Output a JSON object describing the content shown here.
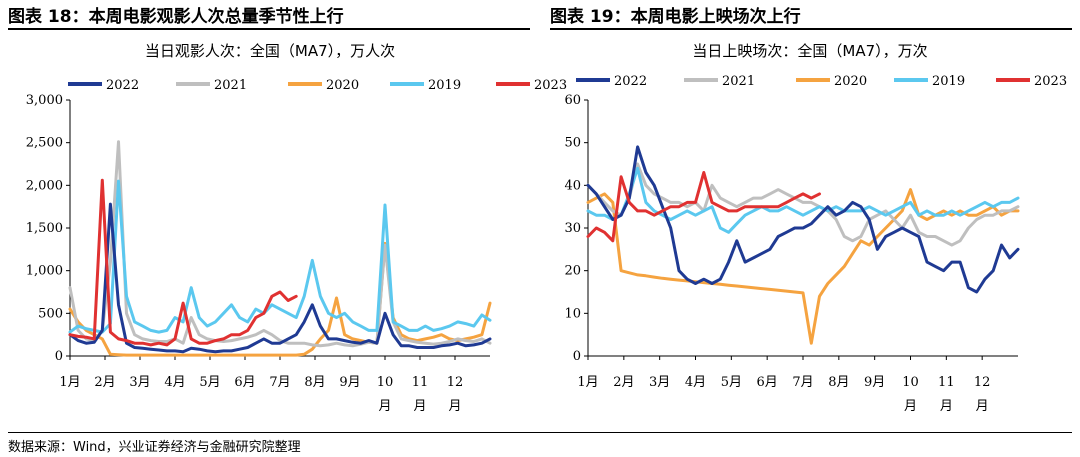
{
  "page": {
    "left_title": "图表 18：本周电影观影人次总量季节性上行",
    "right_title": "图表 19：本周电影上映场次上行",
    "source": "数据来源：Wind，兴业证券经济与金融研究院整理"
  },
  "colors": {
    "2022": "#1f3a93",
    "2021": "#bfbfbf",
    "2020": "#f5a340",
    "2019": "#5bc8ef",
    "2023": "#e03131"
  },
  "chart_data": [
    {
      "type": "line",
      "title": "当日观影人次：全国（MA7），万人次",
      "x_unit": "week",
      "xlim": [
        1,
        53
      ],
      "ylim": [
        0,
        3000
      ],
      "yticks": [
        0,
        500,
        1000,
        1500,
        2000,
        2500,
        3000
      ],
      "ytick_labels": [
        "0",
        "500",
        "1,000",
        "1,500",
        "2,000",
        "2,500",
        "3,000"
      ],
      "xtick_labels": [
        "1月",
        "2月",
        "3月",
        "4月",
        "5月",
        "6月",
        "7月",
        "8月",
        "9月",
        "10月",
        "11月",
        "12月"
      ],
      "legend": [
        "2022",
        "2021",
        "2020",
        "2019",
        "2023"
      ],
      "series": [
        {
          "name": "2022",
          "color": "#1f3a93",
          "x": [
            1,
            2,
            3,
            4,
            5,
            6,
            7,
            8,
            9,
            10,
            11,
            12,
            13,
            14,
            15,
            16,
            17,
            18,
            19,
            20,
            21,
            22,
            23,
            24,
            25,
            26,
            27,
            28,
            29,
            30,
            31,
            32,
            33,
            34,
            35,
            36,
            37,
            38,
            39,
            40,
            41,
            42,
            43,
            44,
            45,
            46,
            47,
            48,
            49,
            50,
            51,
            52,
            53
          ],
          "y": [
            250,
            180,
            150,
            160,
            300,
            1780,
            600,
            150,
            100,
            90,
            80,
            70,
            60,
            60,
            50,
            90,
            80,
            60,
            50,
            60,
            60,
            80,
            100,
            150,
            200,
            150,
            150,
            200,
            250,
            400,
            600,
            350,
            200,
            200,
            180,
            160,
            150,
            180,
            150,
            500,
            250,
            120,
            120,
            100,
            100,
            100,
            120,
            130,
            150,
            120,
            130,
            150,
            200
          ]
        },
        {
          "name": "2021",
          "color": "#bfbfbf",
          "x": [
            1,
            2,
            3,
            4,
            5,
            6,
            7,
            8,
            9,
            10,
            11,
            12,
            13,
            14,
            15,
            16,
            17,
            18,
            19,
            20,
            21,
            22,
            23,
            24,
            25,
            26,
            27,
            28,
            29,
            30,
            31,
            32,
            33,
            34,
            35,
            36,
            37,
            38,
            39,
            40,
            41,
            42,
            43,
            44,
            45,
            46,
            47,
            48,
            49,
            50,
            51,
            52,
            53
          ],
          "y": [
            800,
            300,
            200,
            180,
            300,
            1100,
            2510,
            500,
            250,
            200,
            180,
            170,
            170,
            200,
            150,
            450,
            250,
            200,
            180,
            170,
            180,
            200,
            220,
            250,
            300,
            250,
            180,
            150,
            150,
            150,
            130,
            120,
            130,
            150,
            130,
            120,
            140,
            160,
            150,
            1300,
            400,
            200,
            180,
            160,
            150,
            140,
            150,
            170,
            200,
            180,
            170,
            200,
            150
          ]
        },
        {
          "name": "2020",
          "color": "#f5a340",
          "x": [
            1,
            2,
            3,
            4,
            5,
            6,
            7,
            8,
            9,
            10,
            11,
            12,
            13,
            14,
            15,
            16,
            17,
            18,
            19,
            20,
            21,
            22,
            23,
            24,
            25,
            26,
            27,
            28,
            29,
            30,
            31,
            32,
            33,
            34,
            35,
            36,
            37,
            38,
            39,
            40,
            41,
            42,
            43,
            44,
            45,
            46,
            47,
            48,
            49,
            50,
            51,
            52,
            53
          ],
          "y": [
            550,
            400,
            300,
            250,
            200,
            20,
            15,
            10,
            10,
            10,
            10,
            10,
            10,
            10,
            10,
            10,
            10,
            10,
            10,
            10,
            10,
            10,
            10,
            10,
            10,
            10,
            10,
            10,
            10,
            20,
            80,
            200,
            300,
            680,
            250,
            200,
            180,
            160,
            150,
            1320,
            450,
            250,
            200,
            180,
            200,
            220,
            250,
            200,
            180,
            200,
            220,
            250,
            620
          ]
        },
        {
          "name": "2019",
          "color": "#5bc8ef",
          "x": [
            1,
            2,
            3,
            4,
            5,
            6,
            7,
            8,
            9,
            10,
            11,
            12,
            13,
            14,
            15,
            16,
            17,
            18,
            19,
            20,
            21,
            22,
            23,
            24,
            25,
            26,
            27,
            28,
            29,
            30,
            31,
            32,
            33,
            34,
            35,
            36,
            37,
            38,
            39,
            40,
            41,
            42,
            43,
            44,
            45,
            46,
            47,
            48,
            49,
            50,
            51,
            52,
            53
          ],
          "y": [
            280,
            350,
            320,
            300,
            280,
            380,
            2050,
            700,
            400,
            350,
            300,
            280,
            300,
            450,
            400,
            800,
            450,
            350,
            400,
            500,
            600,
            450,
            400,
            550,
            500,
            600,
            550,
            500,
            450,
            700,
            1120,
            700,
            500,
            450,
            500,
            400,
            350,
            300,
            300,
            1770,
            400,
            350,
            300,
            300,
            350,
            300,
            320,
            350,
            400,
            380,
            350,
            480,
            420
          ]
        },
        {
          "name": "2023",
          "color": "#e03131",
          "x": [
            1,
            2,
            3,
            4,
            5,
            6,
            7,
            8,
            9,
            10,
            11,
            12,
            13,
            14,
            15,
            16,
            17,
            18,
            19,
            20,
            21,
            22,
            23,
            24,
            25,
            26,
            27,
            28,
            29
          ],
          "y": [
            250,
            230,
            220,
            200,
            2060,
            280,
            200,
            180,
            150,
            150,
            130,
            150,
            130,
            200,
            620,
            200,
            150,
            150,
            180,
            200,
            250,
            250,
            300,
            450,
            500,
            700,
            750,
            650,
            700
          ]
        }
      ]
    },
    {
      "type": "line",
      "title": "当日上映场次：全国（MA7），万次",
      "x_unit": "week",
      "xlim": [
        1,
        53
      ],
      "ylim": [
        0,
        60
      ],
      "yticks": [
        0,
        10,
        20,
        30,
        40,
        50,
        60
      ],
      "ytick_labels": [
        "0",
        "10",
        "20",
        "30",
        "40",
        "50",
        "60"
      ],
      "xtick_labels": [
        "1月",
        "2月",
        "3月",
        "4月",
        "5月",
        "6月",
        "7月",
        "8月",
        "9月",
        "10月",
        "11月",
        "12月"
      ],
      "legend": [
        "2022",
        "2021",
        "2020",
        "2019",
        "2023"
      ],
      "series": [
        {
          "name": "2022",
          "color": "#1f3a93",
          "x": [
            1,
            2,
            3,
            4,
            5,
            6,
            7,
            8,
            9,
            10,
            11,
            12,
            13,
            14,
            15,
            16,
            17,
            18,
            19,
            20,
            21,
            22,
            23,
            24,
            25,
            26,
            27,
            28,
            29,
            30,
            31,
            32,
            33,
            34,
            35,
            36,
            37,
            38,
            39,
            40,
            41,
            42,
            43,
            44,
            45,
            46,
            47,
            48,
            49,
            50,
            51,
            52,
            53
          ],
          "y": [
            40,
            38,
            35,
            32,
            33,
            37,
            49,
            43,
            40,
            35,
            30,
            20,
            18,
            17,
            18,
            17,
            18,
            22,
            27,
            22,
            23,
            24,
            25,
            28,
            29,
            30,
            30,
            31,
            33,
            35,
            33,
            34,
            36,
            35,
            32,
            25,
            28,
            29,
            30,
            29,
            28,
            22,
            21,
            20,
            22,
            22,
            16,
            15,
            18,
            20,
            26,
            23,
            25
          ]
        },
        {
          "name": "2021",
          "color": "#bfbfbf",
          "x": [
            1,
            2,
            3,
            4,
            5,
            6,
            7,
            8,
            9,
            10,
            11,
            12,
            13,
            14,
            15,
            16,
            17,
            18,
            19,
            20,
            21,
            22,
            23,
            24,
            25,
            26,
            27,
            28,
            29,
            30,
            31,
            32,
            33,
            34,
            35,
            36,
            37,
            38,
            39,
            40,
            41,
            42,
            43,
            44,
            45,
            46,
            47,
            48,
            49,
            50,
            51,
            52,
            53
          ],
          "y": [
            40,
            38,
            36,
            34,
            33,
            37,
            45,
            40,
            38,
            37,
            36,
            36,
            35,
            36,
            34,
            40,
            37,
            36,
            35,
            36,
            37,
            37,
            38,
            39,
            38,
            37,
            36,
            36,
            35,
            34,
            32,
            28,
            27,
            28,
            32,
            33,
            34,
            32,
            30,
            33,
            29,
            28,
            28,
            27,
            26,
            27,
            30,
            32,
            33,
            33,
            34,
            34,
            35
          ]
        },
        {
          "name": "2020",
          "color": "#f5a340",
          "x": [
            1,
            2,
            3,
            4,
            5,
            6,
            7,
            8,
            9,
            10,
            11,
            12,
            13,
            14,
            15,
            16,
            17,
            18,
            19,
            20,
            21,
            22,
            23,
            24,
            25,
            26,
            27,
            28,
            29,
            30,
            31,
            32,
            33,
            34,
            35,
            36,
            37,
            38,
            39,
            40,
            41,
            42,
            43,
            44,
            45,
            46,
            47,
            48,
            49,
            50,
            51,
            52,
            53
          ],
          "y": [
            36,
            37,
            38,
            36,
            20,
            19.5,
            19,
            18.8,
            18.5,
            18.2,
            18,
            17.8,
            17.6,
            17.4,
            17.2,
            17,
            16.8,
            16.6,
            16.4,
            16.2,
            16,
            15.8,
            15.6,
            15.4,
            15.2,
            15,
            14.8,
            3,
            14,
            17,
            19,
            21,
            24,
            27,
            26,
            28,
            30,
            32,
            34,
            39,
            33,
            32,
            33,
            34,
            33,
            34,
            33,
            33,
            34,
            35,
            33,
            34,
            34
          ]
        },
        {
          "name": "2019",
          "color": "#5bc8ef",
          "x": [
            1,
            2,
            3,
            4,
            5,
            6,
            7,
            8,
            9,
            10,
            11,
            12,
            13,
            14,
            15,
            16,
            17,
            18,
            19,
            20,
            21,
            22,
            23,
            24,
            25,
            26,
            27,
            28,
            29,
            30,
            31,
            32,
            33,
            34,
            35,
            36,
            37,
            38,
            39,
            40,
            41,
            42,
            43,
            44,
            45,
            46,
            47,
            48,
            49,
            50,
            51,
            52,
            53
          ],
          "y": [
            34,
            33,
            33,
            32,
            33,
            38,
            44,
            36,
            34,
            33,
            32,
            33,
            34,
            33,
            34,
            35,
            30,
            29,
            31,
            33,
            34,
            35,
            34,
            34,
            35,
            34,
            33,
            34,
            35,
            34,
            35,
            34,
            34,
            34,
            35,
            34,
            33,
            34,
            35,
            36,
            33,
            34,
            33,
            33,
            34,
            33,
            34,
            35,
            36,
            35,
            36,
            36,
            37
          ]
        },
        {
          "name": "2023",
          "color": "#e03131",
          "x": [
            1,
            2,
            3,
            4,
            5,
            6,
            7,
            8,
            9,
            10,
            11,
            12,
            13,
            14,
            15,
            16,
            17,
            18,
            19,
            20,
            21,
            22,
            23,
            24,
            25,
            26,
            27,
            28,
            29
          ],
          "y": [
            28,
            30,
            29,
            27,
            42,
            36,
            34,
            34,
            33,
            34,
            35,
            35,
            36,
            36,
            43,
            36,
            35,
            34,
            34,
            35,
            35,
            35,
            35,
            35,
            36,
            37,
            38,
            37,
            38
          ]
        }
      ]
    }
  ]
}
